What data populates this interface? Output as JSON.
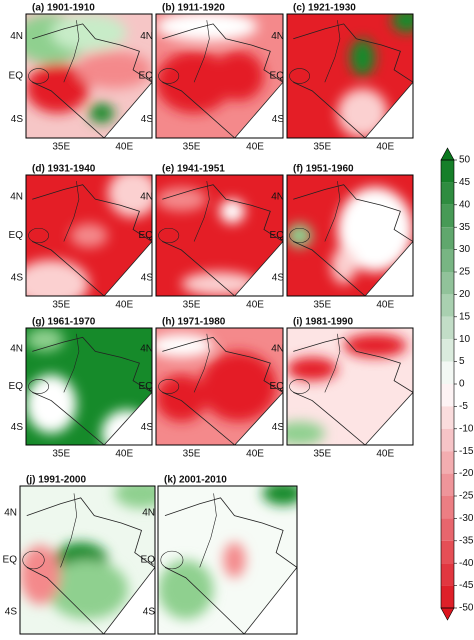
{
  "panels": [
    {
      "title": "(a) 1901-1910"
    },
    {
      "title": "(b) 1911-1920"
    },
    {
      "title": "(c) 1921-1930"
    },
    {
      "title": "(d) 1931-1940"
    },
    {
      "title": "(e) 1941-1951"
    },
    {
      "title": "(f) 1951-1960"
    },
    {
      "title": "(g) 1961-1970"
    },
    {
      "title": "(h) 1971-1980"
    },
    {
      "title": "(i) 1981-1990"
    },
    {
      "title": "(j) 1991-2000"
    },
    {
      "title": "(k) 2001-2010"
    }
  ],
  "latitude_labels": [
    "4N",
    "EQ",
    "4S"
  ],
  "longitude_labels": [
    "35E",
    "40E"
  ],
  "colorbar": {
    "ticks": [
      50,
      45,
      40,
      35,
      30,
      25,
      20,
      15,
      10,
      5,
      0,
      -5,
      -10,
      -15,
      -20,
      -25,
      -30,
      -35,
      -40,
      -45,
      -50
    ]
  }
}
